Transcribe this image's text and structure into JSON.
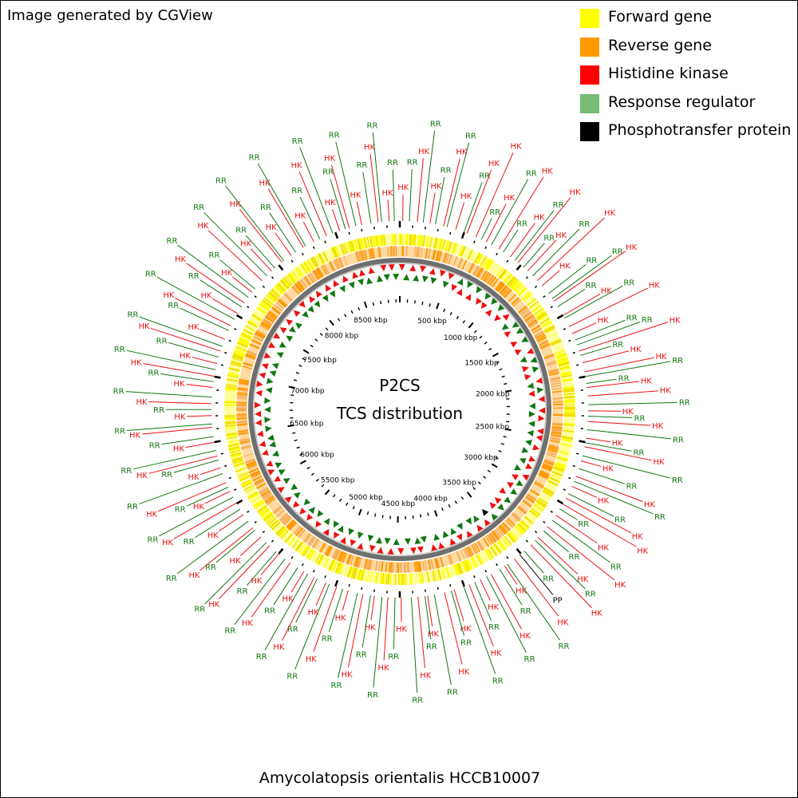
{
  "credit": "Image generated by CGView",
  "center_title": "P2CS",
  "center_subtitle": "TCS distribution",
  "organism": "Amycolatopsis orientalis HCCB10007",
  "legend": [
    {
      "label": "Forward gene",
      "color": "#ffff00"
    },
    {
      "label": "Reverse gene",
      "color": "#ff9900"
    },
    {
      "label": "Histidine kinase",
      "color": "#ff0000"
    },
    {
      "label": "Response regulator",
      "color": "#77bb77"
    },
    {
      "label": "Phosphotransfer protein",
      "color": "#000000"
    }
  ],
  "colors": {
    "hk": "#ee1111",
    "rr": "#117711",
    "pp": "#000000",
    "backbone": "#777777"
  },
  "genome": {
    "length_kbp": 8950,
    "ruler_labels": [
      "500 kbp",
      "1000 kbp",
      "1500 kbp",
      "2000 kbp",
      "2500 kbp",
      "3000 kbp",
      "3500 kbp",
      "4000 kbp",
      "4500 kbp",
      "5000 kbp",
      "5500 kbp",
      "6000 kbp",
      "6500 kbp",
      "7000 kbp",
      "7500 kbp",
      "8000 kbp",
      "8500 kbp"
    ]
  },
  "labels": [
    "HK",
    "RR",
    "HK",
    "RR",
    "HK",
    "RR",
    "HK",
    "RR",
    "HK",
    "RR",
    "HK",
    "HK",
    "RR",
    "HK",
    "RR",
    "HK",
    "RR",
    "HK",
    "RR",
    "HK",
    "RR",
    "HK",
    "RR",
    "HK",
    "HK",
    "RR",
    "RR",
    "HK",
    "RR",
    "HK",
    "RR",
    "HK",
    "HK",
    "RR",
    "RR",
    "HK",
    "RR",
    "HK",
    "HK",
    "RR",
    "RR",
    "HK",
    "HK",
    "RR",
    "HK",
    "RR",
    "HK",
    "RR",
    "HK",
    "RR",
    "HK",
    "RR",
    "HK",
    "RR",
    "HK",
    "RR",
    "HK",
    "RR",
    "HK",
    "HK",
    "RR",
    "HK",
    "RR",
    "HK",
    "RR",
    "HK",
    "RR",
    "HK",
    "RR",
    "PP",
    "HK",
    "RR",
    "HK",
    "RR",
    "HK",
    "RR",
    "HK",
    "RR",
    "HK",
    "RR",
    "HK",
    "RR",
    "HK",
    "RR",
    "HK",
    "RR",
    "HK",
    "RR",
    "HK",
    "RR",
    "HK",
    "RR",
    "HK",
    "RR",
    "HK",
    "RR",
    "HK",
    "RR",
    "HK",
    "RR",
    "HK",
    "RR",
    "HK",
    "RR",
    "HK",
    "RR",
    "HK",
    "RR",
    "HK",
    "RR",
    "HK",
    "RR",
    "HK",
    "RR",
    "HK",
    "RR",
    "HK",
    "RR",
    "HK",
    "RR",
    "HK",
    "RR",
    "HK",
    "RR",
    "HK",
    "RR",
    "HK",
    "RR",
    "HK",
    "RR",
    "HK",
    "RR",
    "HK",
    "RR",
    "HK",
    "RR",
    "HK",
    "RR",
    "HK",
    "RR",
    "HK",
    "RR",
    "HK",
    "RR",
    "HK",
    "RR",
    "HK",
    "RR",
    "HK",
    "RR",
    "HK",
    "RR",
    "HK",
    "RR",
    "HK",
    "RR",
    "HK",
    "RR",
    "HK",
    "RR",
    "HK",
    "RR",
    "HK",
    "RR",
    "HK",
    "RR",
    "HK",
    "RR",
    "HK",
    "RR",
    "HK",
    "RR",
    "HK",
    "RR",
    "HK",
    "RR",
    "HK",
    "RR"
  ]
}
